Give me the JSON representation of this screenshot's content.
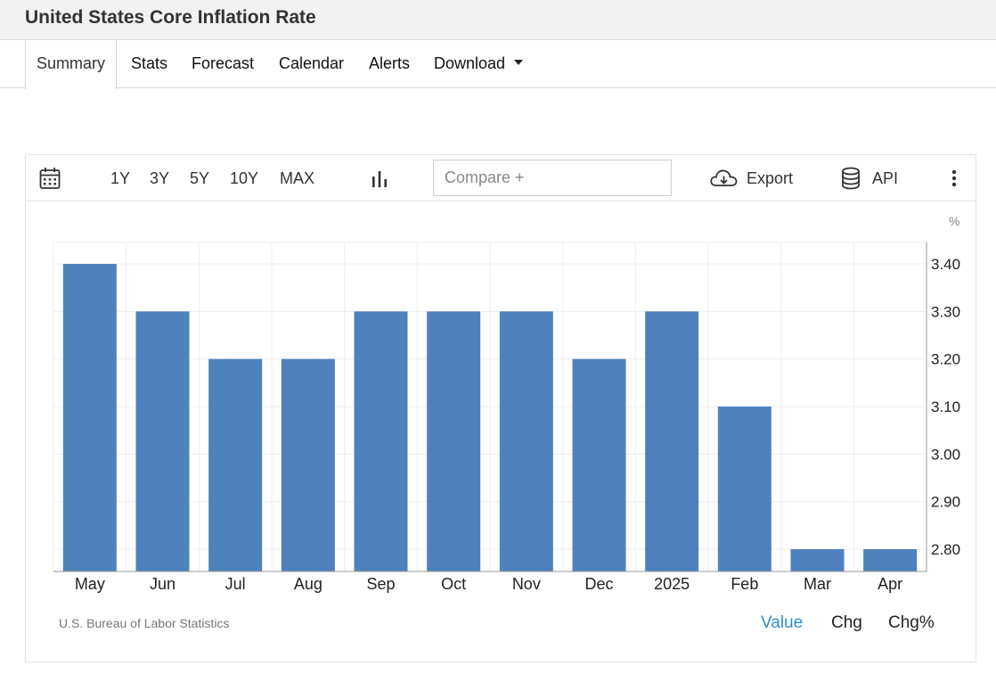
{
  "page": {
    "title": "United States Core Inflation Rate"
  },
  "tabs": [
    {
      "label": "Summary",
      "active": true
    },
    {
      "label": "Stats"
    },
    {
      "label": "Forecast"
    },
    {
      "label": "Calendar"
    },
    {
      "label": "Alerts"
    },
    {
      "label": "Download"
    }
  ],
  "toolbar": {
    "ranges": [
      "1Y",
      "3Y",
      "5Y",
      "10Y",
      "MAX"
    ],
    "compare_placeholder": "Compare +",
    "export_label": "Export",
    "api_label": "API",
    "icons": [
      "calendar-icon",
      "bar-chart-icon",
      "cloud-download-icon",
      "database-icon",
      "more-vertical-icon"
    ]
  },
  "chart_data": {
    "type": "bar",
    "categories": [
      "May",
      "Jun",
      "Jul",
      "Aug",
      "Sep",
      "Oct",
      "Nov",
      "Dec",
      "2025",
      "Feb",
      "Mar",
      "Apr"
    ],
    "values": [
      3.4,
      3.3,
      3.2,
      3.2,
      3.3,
      3.3,
      3.3,
      3.2,
      3.3,
      3.1,
      2.8,
      2.8
    ],
    "unit": "%",
    "ylim": [
      2.75,
      3.45
    ],
    "yticks": [
      "3.40",
      "3.30",
      "3.20",
      "3.10",
      "3.00",
      "2.90",
      "2.80"
    ],
    "y_axis_side": "right",
    "grid": true,
    "bar_color": "#4f81bd"
  },
  "footer": {
    "source": "U.S. Bureau of Labor Statistics",
    "modes": [
      "Value",
      "Chg",
      "Chg%"
    ],
    "active_mode": "Value",
    "active_color": "#2d8fd5"
  }
}
